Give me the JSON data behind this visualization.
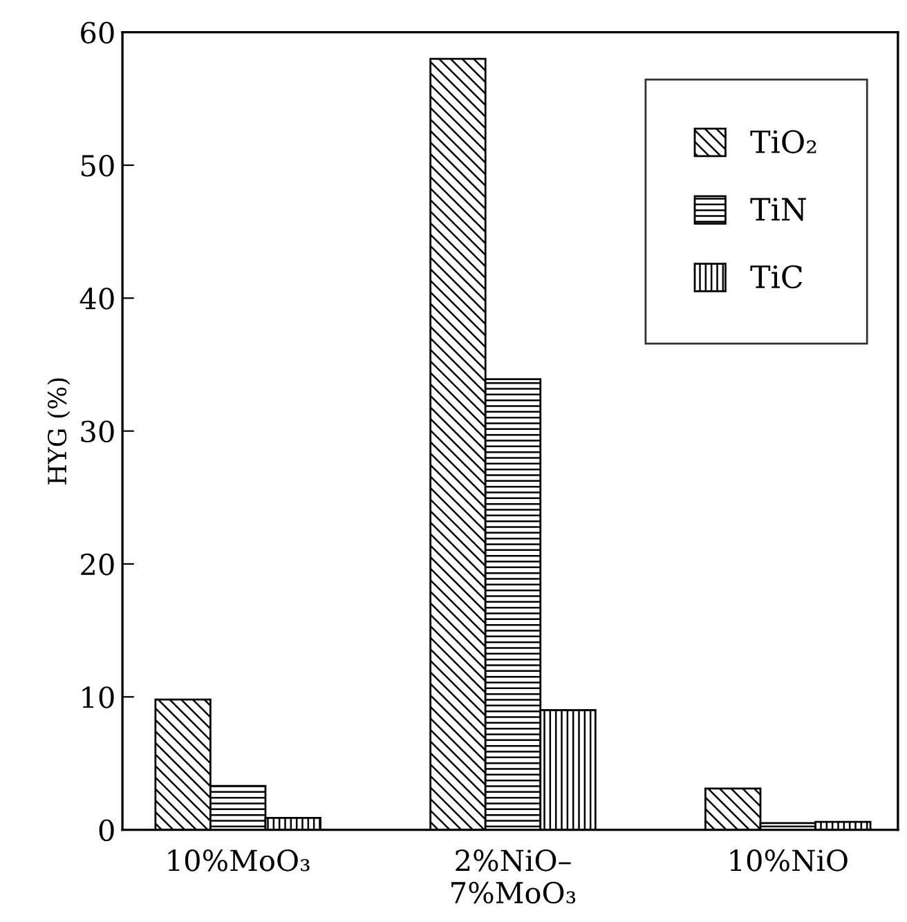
{
  "chart_data": {
    "type": "bar",
    "ylabel": "HYG (%)",
    "categories": [
      "10%MoO₃",
      "2%NiO–\n7%MoO₃",
      "10%NiO"
    ],
    "series": [
      {
        "name": "TiO₂",
        "color": "#000000",
        "values": [
          9.8,
          58.0,
          3.1
        ]
      },
      {
        "name": "TiN",
        "color": "#000000",
        "values": [
          3.3,
          33.9,
          0.5
        ]
      },
      {
        "name": "TiC",
        "color": "#000000",
        "values": [
          0.9,
          9.0,
          0.6
        ]
      }
    ],
    "ylim": [
      0,
      60
    ],
    "yticks": [
      0,
      10,
      20,
      30,
      40,
      50,
      60
    ],
    "grid": false,
    "legend": "top right"
  }
}
